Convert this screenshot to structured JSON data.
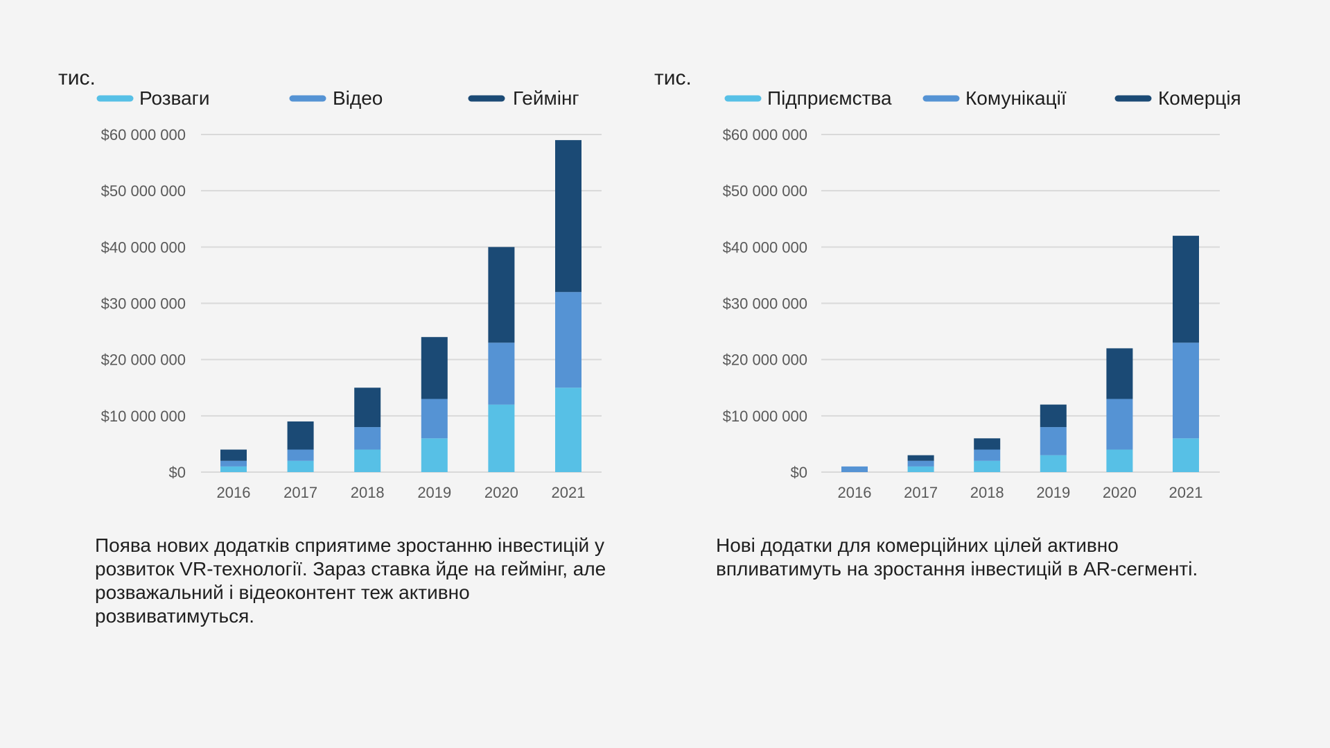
{
  "colors": {
    "background": "#f4f4f4",
    "light_blue": "#57c0e6",
    "mid_blue": "#5593d4",
    "dark_blue": "#1b4a75",
    "grid": "#d9d9d9",
    "tick_text": "#595959"
  },
  "chart_data": [
    {
      "type": "bar",
      "stacked": true,
      "unit_label": "тис.",
      "categories": [
        "2016",
        "2017",
        "2018",
        "2019",
        "2020",
        "2021"
      ],
      "series": [
        {
          "name": "Розваги",
          "color": "#57c0e6",
          "values": [
            1000000,
            2000000,
            4000000,
            6000000,
            12000000,
            15000000
          ]
        },
        {
          "name": "Відео",
          "color": "#5593d4",
          "values": [
            1000000,
            2000000,
            4000000,
            7000000,
            11000000,
            17000000
          ]
        },
        {
          "name": "Геймінг",
          "color": "#1b4a75",
          "values": [
            2000000,
            5000000,
            7000000,
            11000000,
            17000000,
            27000000
          ]
        }
      ],
      "ylim": [
        0,
        60000000
      ],
      "yticks": [
        "$0",
        "$10 000 000",
        "$20 000 000",
        "$30 000 000",
        "$40 000 000",
        "$50 000 000",
        "$60 000 000"
      ],
      "grid": true,
      "legend_position": "top",
      "description": "Поява нових додатків сприятиме зростанню інвестицій у розвиток VR-технології. Зараз ставка йде на геймінг, але розважальний і відеоконтент теж активно розвиватимуться."
    },
    {
      "type": "bar",
      "stacked": true,
      "unit_label": "тис.",
      "categories": [
        "2016",
        "2017",
        "2018",
        "2019",
        "2020",
        "2021"
      ],
      "series": [
        {
          "name": "Підприємства",
          "color": "#57c0e6",
          "values": [
            0,
            1000000,
            2000000,
            3000000,
            4000000,
            6000000
          ]
        },
        {
          "name": "Комунікації",
          "color": "#5593d4",
          "values": [
            1000000,
            1000000,
            2000000,
            5000000,
            9000000,
            17000000
          ]
        },
        {
          "name": "Комерція",
          "color": "#1b4a75",
          "values": [
            0,
            1000000,
            2000000,
            4000000,
            9000000,
            19000000
          ]
        }
      ],
      "ylim": [
        0,
        60000000
      ],
      "yticks": [
        "$0",
        "$10 000 000",
        "$20 000 000",
        "$30 000 000",
        "$40 000 000",
        "$50 000 000",
        "$60 000 000"
      ],
      "grid": true,
      "legend_position": "top",
      "description": "Нові додатки для комерційних цілей активно впливатимуть на зростання інвестицій в AR-сегменті."
    }
  ]
}
